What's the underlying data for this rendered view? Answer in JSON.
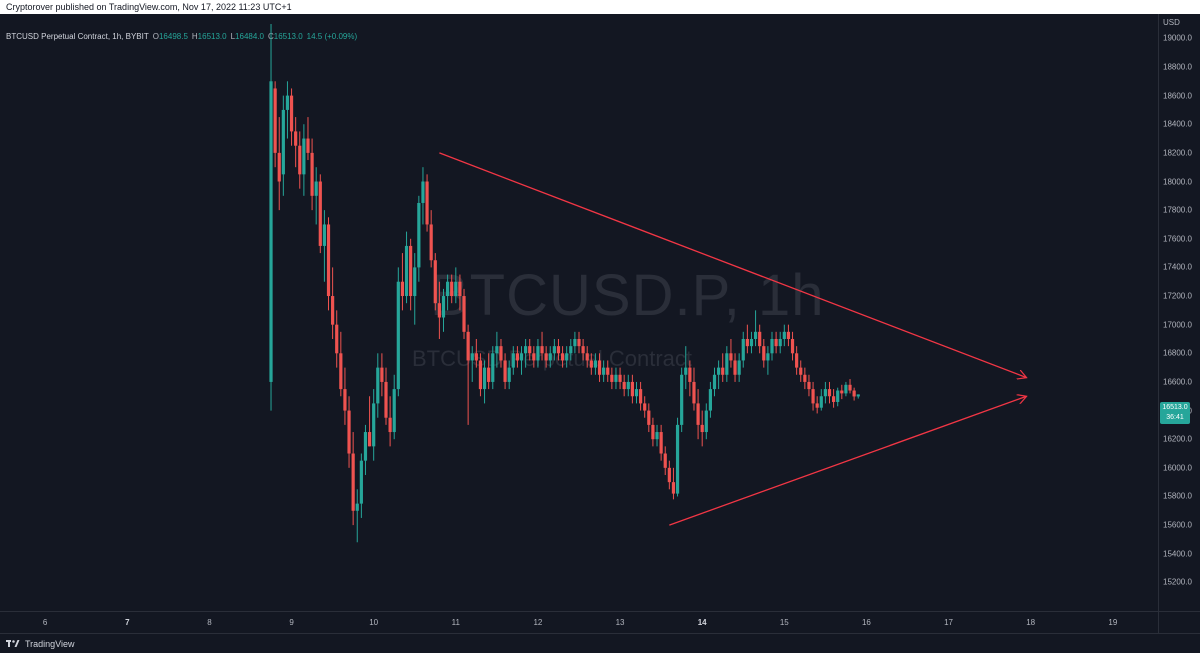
{
  "header": {
    "published_text": "Cryptorover published on TradingView.com, Nov 17, 2022 11:23 UTC+1"
  },
  "legend": {
    "symbol_line": "BTCUSD Perpetual Contract, 1h, BYBIT",
    "o_label": "O",
    "o_value": "16498.5",
    "h_label": "H",
    "h_value": "16513.0",
    "l_label": "L",
    "l_value": "16484.0",
    "c_label": "C",
    "c_value": "16513.0",
    "change": "14.5 (+0.09%)"
  },
  "watermark": {
    "symbol": "BTCUSD.P, 1h",
    "description": "BTCUSD Perpetual Contract"
  },
  "price_axis": {
    "currency": "USD",
    "last_price": "16513.0",
    "countdown": "36:41"
  },
  "footer": {
    "brand": "TradingView"
  },
  "colors": {
    "up": "#26a69a",
    "down": "#ef5350",
    "trendline": "#f23645",
    "background": "#131722"
  },
  "chart_data": {
    "type": "candlestick",
    "title": "BTCUSD Perpetual Contract, 1h, BYBIT",
    "x_ticks": [
      "6",
      "7",
      "8",
      "9",
      "10",
      "11",
      "12",
      "13",
      "14",
      "15",
      "16",
      "17",
      "18",
      "19"
    ],
    "x_tick_days": [
      6,
      7,
      8,
      9,
      10,
      11,
      12,
      13,
      14,
      15,
      16,
      17,
      18,
      19
    ],
    "major_ticks": [
      "7",
      "14"
    ],
    "y_ticks": [
      "19000.0",
      "18800.0",
      "18600.0",
      "18400.0",
      "18200.0",
      "18000.0",
      "17800.0",
      "17600.0",
      "17400.0",
      "17200.0",
      "17000.0",
      "16800.0",
      "16600.0",
      "16400.0",
      "16200.0",
      "16000.0",
      "15800.0",
      "15600.0",
      "15400.0",
      "15200.0"
    ],
    "y_tick_values": [
      19000,
      18800,
      18600,
      18400,
      18200,
      18000,
      17800,
      17600,
      17400,
      17200,
      17000,
      16800,
      16600,
      16400,
      16200,
      16000,
      15800,
      15600,
      15400,
      15200
    ],
    "x_range": [
      5.45,
      19.55
    ],
    "y_range": [
      15000,
      19170
    ],
    "candles": [
      {
        "t": 8.75,
        "o": 16600,
        "h": 19100,
        "l": 16400,
        "c": 18700
      },
      {
        "t": 8.8,
        "o": 18650,
        "h": 18700,
        "l": 18100,
        "c": 18200
      },
      {
        "t": 8.85,
        "o": 18200,
        "h": 18450,
        "l": 17800,
        "c": 18000
      },
      {
        "t": 8.9,
        "o": 18050,
        "h": 18600,
        "l": 17900,
        "c": 18500
      },
      {
        "t": 8.95,
        "o": 18500,
        "h": 18700,
        "l": 18300,
        "c": 18600
      },
      {
        "t": 9.0,
        "o": 18600,
        "h": 18650,
        "l": 18250,
        "c": 18350
      },
      {
        "t": 9.05,
        "o": 18350,
        "h": 18450,
        "l": 18100,
        "c": 18250
      },
      {
        "t": 9.1,
        "o": 18250,
        "h": 18350,
        "l": 17950,
        "c": 18050
      },
      {
        "t": 9.15,
        "o": 18050,
        "h": 18400,
        "l": 17900,
        "c": 18300
      },
      {
        "t": 9.2,
        "o": 18300,
        "h": 18450,
        "l": 18150,
        "c": 18200
      },
      {
        "t": 9.25,
        "o": 18200,
        "h": 18300,
        "l": 17800,
        "c": 17900
      },
      {
        "t": 9.3,
        "o": 17900,
        "h": 18100,
        "l": 17700,
        "c": 18000
      },
      {
        "t": 9.35,
        "o": 18000,
        "h": 18050,
        "l": 17500,
        "c": 17550
      },
      {
        "t": 9.4,
        "o": 17550,
        "h": 17800,
        "l": 17300,
        "c": 17700
      },
      {
        "t": 9.45,
        "o": 17700,
        "h": 17750,
        "l": 17100,
        "c": 17200
      },
      {
        "t": 9.5,
        "o": 17200,
        "h": 17400,
        "l": 16900,
        "c": 17000
      },
      {
        "t": 9.55,
        "o": 17000,
        "h": 17100,
        "l": 16700,
        "c": 16800
      },
      {
        "t": 9.6,
        "o": 16800,
        "h": 16950,
        "l": 16500,
        "c": 16550
      },
      {
        "t": 9.65,
        "o": 16550,
        "h": 16700,
        "l": 16300,
        "c": 16400
      },
      {
        "t": 9.7,
        "o": 16400,
        "h": 16500,
        "l": 16000,
        "c": 16100
      },
      {
        "t": 9.75,
        "o": 16100,
        "h": 16250,
        "l": 15600,
        "c": 15700
      },
      {
        "t": 9.8,
        "o": 15700,
        "h": 15850,
        "l": 15480,
        "c": 15750
      },
      {
        "t": 9.85,
        "o": 15750,
        "h": 16100,
        "l": 15650,
        "c": 16050
      },
      {
        "t": 9.9,
        "o": 16050,
        "h": 16300,
        "l": 15950,
        "c": 16250
      },
      {
        "t": 9.95,
        "o": 16250,
        "h": 16500,
        "l": 16150,
        "c": 16150
      },
      {
        "t": 10.0,
        "o": 16150,
        "h": 16550,
        "l": 16050,
        "c": 16450
      },
      {
        "t": 10.05,
        "o": 16450,
        "h": 16800,
        "l": 16350,
        "c": 16700
      },
      {
        "t": 10.1,
        "o": 16700,
        "h": 16800,
        "l": 16500,
        "c": 16600
      },
      {
        "t": 10.15,
        "o": 16600,
        "h": 16700,
        "l": 16300,
        "c": 16350
      },
      {
        "t": 10.2,
        "o": 16350,
        "h": 16500,
        "l": 16150,
        "c": 16250
      },
      {
        "t": 10.25,
        "o": 16250,
        "h": 16650,
        "l": 16200,
        "c": 16550
      },
      {
        "t": 10.3,
        "o": 16550,
        "h": 17400,
        "l": 16500,
        "c": 17300
      },
      {
        "t": 10.35,
        "o": 17300,
        "h": 17500,
        "l": 17100,
        "c": 17200
      },
      {
        "t": 10.4,
        "o": 17200,
        "h": 17650,
        "l": 17150,
        "c": 17550
      },
      {
        "t": 10.45,
        "o": 17550,
        "h": 17600,
        "l": 17100,
        "c": 17200
      },
      {
        "t": 10.5,
        "o": 17200,
        "h": 17500,
        "l": 17000,
        "c": 17400
      },
      {
        "t": 10.55,
        "o": 17400,
        "h": 17900,
        "l": 17300,
        "c": 17850
      },
      {
        "t": 10.6,
        "o": 17850,
        "h": 18100,
        "l": 17700,
        "c": 18000
      },
      {
        "t": 10.65,
        "o": 18000,
        "h": 18050,
        "l": 17650,
        "c": 17700
      },
      {
        "t": 10.7,
        "o": 17700,
        "h": 17800,
        "l": 17400,
        "c": 17450
      },
      {
        "t": 10.75,
        "o": 17450,
        "h": 17500,
        "l": 17100,
        "c": 17150
      },
      {
        "t": 10.8,
        "o": 17150,
        "h": 17300,
        "l": 16900,
        "c": 17050
      },
      {
        "t": 10.85,
        "o": 17050,
        "h": 17250,
        "l": 16950,
        "c": 17200
      },
      {
        "t": 10.9,
        "o": 17200,
        "h": 17350,
        "l": 17100,
        "c": 17300
      },
      {
        "t": 10.95,
        "o": 17300,
        "h": 17350,
        "l": 17150,
        "c": 17200
      },
      {
        "t": 11.0,
        "o": 17200,
        "h": 17400,
        "l": 17150,
        "c": 17300
      },
      {
        "t": 11.05,
        "o": 17300,
        "h": 17350,
        "l": 17100,
        "c": 17200
      },
      {
        "t": 11.1,
        "o": 17200,
        "h": 17250,
        "l": 16900,
        "c": 16950
      },
      {
        "t": 11.15,
        "o": 16950,
        "h": 17000,
        "l": 16300,
        "c": 16750
      },
      {
        "t": 11.2,
        "o": 16750,
        "h": 16850,
        "l": 16600,
        "c": 16800
      },
      {
        "t": 11.25,
        "o": 16800,
        "h": 16900,
        "l": 16700,
        "c": 16750
      },
      {
        "t": 11.3,
        "o": 16750,
        "h": 16800,
        "l": 16500,
        "c": 16550
      },
      {
        "t": 11.35,
        "o": 16550,
        "h": 16750,
        "l": 16450,
        "c": 16700
      },
      {
        "t": 11.4,
        "o": 16700,
        "h": 16800,
        "l": 16550,
        "c": 16600
      },
      {
        "t": 11.45,
        "o": 16600,
        "h": 16850,
        "l": 16550,
        "c": 16800
      },
      {
        "t": 11.5,
        "o": 16800,
        "h": 16950,
        "l": 16700,
        "c": 16850
      },
      {
        "t": 11.55,
        "o": 16850,
        "h": 16900,
        "l": 16700,
        "c": 16750
      },
      {
        "t": 11.6,
        "o": 16750,
        "h": 16800,
        "l": 16550,
        "c": 16600
      },
      {
        "t": 11.65,
        "o": 16600,
        "h": 16750,
        "l": 16550,
        "c": 16700
      },
      {
        "t": 11.7,
        "o": 16700,
        "h": 16850,
        "l": 16650,
        "c": 16800
      },
      {
        "t": 11.75,
        "o": 16800,
        "h": 16850,
        "l": 16700,
        "c": 16750
      },
      {
        "t": 11.8,
        "o": 16750,
        "h": 16850,
        "l": 16650,
        "c": 16800
      },
      {
        "t": 11.85,
        "o": 16800,
        "h": 16900,
        "l": 16700,
        "c": 16850
      },
      {
        "t": 11.9,
        "o": 16850,
        "h": 16900,
        "l": 16750,
        "c": 16800
      },
      {
        "t": 11.95,
        "o": 16800,
        "h": 16850,
        "l": 16700,
        "c": 16750
      },
      {
        "t": 12.0,
        "o": 16750,
        "h": 16900,
        "l": 16700,
        "c": 16850
      },
      {
        "t": 12.05,
        "o": 16850,
        "h": 16950,
        "l": 16750,
        "c": 16800
      },
      {
        "t": 12.1,
        "o": 16800,
        "h": 16850,
        "l": 16700,
        "c": 16750
      },
      {
        "t": 12.15,
        "o": 16750,
        "h": 16850,
        "l": 16700,
        "c": 16800
      },
      {
        "t": 12.2,
        "o": 16800,
        "h": 16900,
        "l": 16750,
        "c": 16850
      },
      {
        "t": 12.25,
        "o": 16850,
        "h": 16900,
        "l": 16750,
        "c": 16800
      },
      {
        "t": 12.3,
        "o": 16800,
        "h": 16850,
        "l": 16700,
        "c": 16750
      },
      {
        "t": 12.35,
        "o": 16750,
        "h": 16850,
        "l": 16700,
        "c": 16800
      },
      {
        "t": 12.4,
        "o": 16800,
        "h": 16900,
        "l": 16750,
        "c": 16850
      },
      {
        "t": 12.45,
        "o": 16850,
        "h": 16950,
        "l": 16800,
        "c": 16900
      },
      {
        "t": 12.5,
        "o": 16900,
        "h": 16950,
        "l": 16800,
        "c": 16850
      },
      {
        "t": 12.55,
        "o": 16850,
        "h": 16900,
        "l": 16750,
        "c": 16800
      },
      {
        "t": 12.6,
        "o": 16800,
        "h": 16850,
        "l": 16700,
        "c": 16750
      },
      {
        "t": 12.65,
        "o": 16750,
        "h": 16800,
        "l": 16650,
        "c": 16700
      },
      {
        "t": 12.7,
        "o": 16700,
        "h": 16800,
        "l": 16650,
        "c": 16750
      },
      {
        "t": 12.75,
        "o": 16750,
        "h": 16800,
        "l": 16600,
        "c": 16650
      },
      {
        "t": 12.8,
        "o": 16650,
        "h": 16750,
        "l": 16600,
        "c": 16700
      },
      {
        "t": 12.85,
        "o": 16700,
        "h": 16750,
        "l": 16600,
        "c": 16650
      },
      {
        "t": 12.9,
        "o": 16650,
        "h": 16700,
        "l": 16550,
        "c": 16600
      },
      {
        "t": 12.95,
        "o": 16600,
        "h": 16700,
        "l": 16550,
        "c": 16650
      },
      {
        "t": 13.0,
        "o": 16650,
        "h": 16700,
        "l": 16550,
        "c": 16600
      },
      {
        "t": 13.05,
        "o": 16600,
        "h": 16650,
        "l": 16500,
        "c": 16550
      },
      {
        "t": 13.1,
        "o": 16550,
        "h": 16650,
        "l": 16500,
        "c": 16600
      },
      {
        "t": 13.15,
        "o": 16600,
        "h": 16650,
        "l": 16450,
        "c": 16500
      },
      {
        "t": 13.2,
        "o": 16500,
        "h": 16600,
        "l": 16450,
        "c": 16550
      },
      {
        "t": 13.25,
        "o": 16550,
        "h": 16600,
        "l": 16400,
        "c": 16450
      },
      {
        "t": 13.3,
        "o": 16450,
        "h": 16500,
        "l": 16350,
        "c": 16400
      },
      {
        "t": 13.35,
        "o": 16400,
        "h": 16450,
        "l": 16250,
        "c": 16300
      },
      {
        "t": 13.4,
        "o": 16300,
        "h": 16350,
        "l": 16150,
        "c": 16200
      },
      {
        "t": 13.45,
        "o": 16200,
        "h": 16300,
        "l": 16150,
        "c": 16250
      },
      {
        "t": 13.5,
        "o": 16250,
        "h": 16300,
        "l": 16050,
        "c": 16100
      },
      {
        "t": 13.55,
        "o": 16100,
        "h": 16150,
        "l": 15950,
        "c": 16000
      },
      {
        "t": 13.6,
        "o": 16000,
        "h": 16050,
        "l": 15850,
        "c": 15900
      },
      {
        "t": 13.65,
        "o": 15900,
        "h": 16000,
        "l": 15780,
        "c": 15820
      },
      {
        "t": 13.7,
        "o": 15820,
        "h": 16350,
        "l": 15800,
        "c": 16300
      },
      {
        "t": 13.75,
        "o": 16300,
        "h": 16700,
        "l": 16250,
        "c": 16650
      },
      {
        "t": 13.8,
        "o": 16650,
        "h": 16850,
        "l": 16550,
        "c": 16700
      },
      {
        "t": 13.85,
        "o": 16700,
        "h": 16750,
        "l": 16500,
        "c": 16600
      },
      {
        "t": 13.9,
        "o": 16600,
        "h": 16700,
        "l": 16400,
        "c": 16450
      },
      {
        "t": 13.95,
        "o": 16450,
        "h": 16550,
        "l": 16200,
        "c": 16300
      },
      {
        "t": 14.0,
        "o": 16300,
        "h": 16400,
        "l": 16150,
        "c": 16250
      },
      {
        "t": 14.05,
        "o": 16250,
        "h": 16450,
        "l": 16200,
        "c": 16400
      },
      {
        "t": 14.1,
        "o": 16400,
        "h": 16600,
        "l": 16350,
        "c": 16550
      },
      {
        "t": 14.15,
        "o": 16550,
        "h": 16700,
        "l": 16500,
        "c": 16650
      },
      {
        "t": 14.2,
        "o": 16650,
        "h": 16750,
        "l": 16550,
        "c": 16700
      },
      {
        "t": 14.25,
        "o": 16700,
        "h": 16800,
        "l": 16600,
        "c": 16650
      },
      {
        "t": 14.3,
        "o": 16650,
        "h": 16850,
        "l": 16600,
        "c": 16800
      },
      {
        "t": 14.35,
        "o": 16800,
        "h": 16900,
        "l": 16700,
        "c": 16750
      },
      {
        "t": 14.4,
        "o": 16750,
        "h": 16800,
        "l": 16600,
        "c": 16650
      },
      {
        "t": 14.45,
        "o": 16650,
        "h": 16800,
        "l": 16600,
        "c": 16750
      },
      {
        "t": 14.5,
        "o": 16750,
        "h": 16950,
        "l": 16700,
        "c": 16900
      },
      {
        "t": 14.55,
        "o": 16900,
        "h": 17000,
        "l": 16800,
        "c": 16850
      },
      {
        "t": 14.6,
        "o": 16850,
        "h": 16950,
        "l": 16800,
        "c": 16900
      },
      {
        "t": 14.65,
        "o": 16900,
        "h": 17100,
        "l": 16850,
        "c": 16950
      },
      {
        "t": 14.7,
        "o": 16950,
        "h": 17000,
        "l": 16800,
        "c": 16850
      },
      {
        "t": 14.75,
        "o": 16850,
        "h": 16900,
        "l": 16700,
        "c": 16750
      },
      {
        "t": 14.8,
        "o": 16750,
        "h": 16850,
        "l": 16650,
        "c": 16800
      },
      {
        "t": 14.85,
        "o": 16800,
        "h": 16950,
        "l": 16750,
        "c": 16900
      },
      {
        "t": 14.9,
        "o": 16900,
        "h": 16950,
        "l": 16800,
        "c": 16850
      },
      {
        "t": 14.95,
        "o": 16850,
        "h": 16950,
        "l": 16800,
        "c": 16900
      },
      {
        "t": 15.0,
        "o": 16900,
        "h": 17000,
        "l": 16850,
        "c": 16950
      },
      {
        "t": 15.05,
        "o": 16950,
        "h": 17000,
        "l": 16850,
        "c": 16900
      },
      {
        "t": 15.1,
        "o": 16900,
        "h": 16950,
        "l": 16750,
        "c": 16800
      },
      {
        "t": 15.15,
        "o": 16800,
        "h": 16850,
        "l": 16650,
        "c": 16700
      },
      {
        "t": 15.2,
        "o": 16700,
        "h": 16750,
        "l": 16600,
        "c": 16650
      },
      {
        "t": 15.25,
        "o": 16650,
        "h": 16700,
        "l": 16550,
        "c": 16600
      },
      {
        "t": 15.3,
        "o": 16600,
        "h": 16650,
        "l": 16500,
        "c": 16550
      },
      {
        "t": 15.35,
        "o": 16550,
        "h": 16600,
        "l": 16400,
        "c": 16450
      },
      {
        "t": 15.4,
        "o": 16450,
        "h": 16500,
        "l": 16380,
        "c": 16420
      },
      {
        "t": 15.45,
        "o": 16420,
        "h": 16550,
        "l": 16400,
        "c": 16500
      },
      {
        "t": 15.5,
        "o": 16500,
        "h": 16600,
        "l": 16450,
        "c": 16550
      },
      {
        "t": 15.55,
        "o": 16550,
        "h": 16600,
        "l": 16450,
        "c": 16500
      },
      {
        "t": 15.6,
        "o": 16500,
        "h": 16550,
        "l": 16420,
        "c": 16460
      },
      {
        "t": 15.65,
        "o": 16460,
        "h": 16560,
        "l": 16430,
        "c": 16540
      },
      {
        "t": 15.7,
        "o": 16540,
        "h": 16580,
        "l": 16480,
        "c": 16520
      },
      {
        "t": 15.75,
        "o": 16520,
        "h": 16600,
        "l": 16500,
        "c": 16580
      },
      {
        "t": 15.8,
        "o": 16580,
        "h": 16620,
        "l": 16520,
        "c": 16540
      },
      {
        "t": 15.85,
        "o": 16540,
        "h": 16560,
        "l": 16470,
        "c": 16498.5
      },
      {
        "t": 15.9,
        "o": 16498.5,
        "h": 16513,
        "l": 16484,
        "c": 16513
      }
    ],
    "trendlines": [
      {
        "name": "upper",
        "from": {
          "t": 10.8,
          "p": 18200
        },
        "to": {
          "t": 17.95,
          "p": 16630
        }
      },
      {
        "name": "lower",
        "from": {
          "t": 13.6,
          "p": 15600
        },
        "to": {
          "t": 17.95,
          "p": 16500
        }
      }
    ]
  }
}
